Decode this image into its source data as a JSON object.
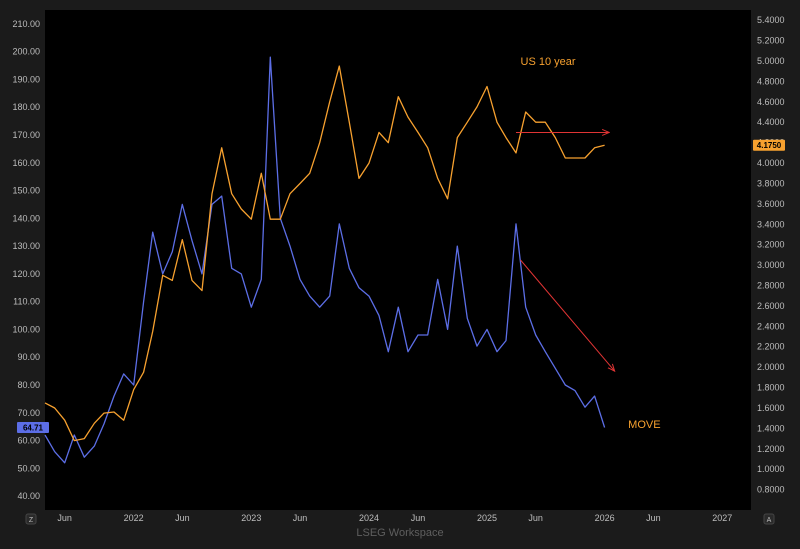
{
  "colors": {
    "background": "#1b1b1b",
    "plot_area": "#000000",
    "move_series": "#5c6ee6",
    "us10y_series": "#f7a12f",
    "arrow": "#e03434",
    "axis_text": "#bdbdbd"
  },
  "footer": {
    "watermark": "LSEG Workspace"
  },
  "corner_buttons": {
    "left": "Z",
    "right": "A"
  },
  "chart_data": {
    "type": "line",
    "x_axis": {
      "range": [
        "2021-04-01",
        "2027-03-31"
      ],
      "tick_labels": [
        {
          "date": "2021-06-01",
          "label": "Jun"
        },
        {
          "date": "2022-01-01",
          "label": "2022"
        },
        {
          "date": "2022-06-01",
          "label": "Jun"
        },
        {
          "date": "2023-01-01",
          "label": "2023"
        },
        {
          "date": "2023-06-01",
          "label": "Jun"
        },
        {
          "date": "2024-01-01",
          "label": "2024"
        },
        {
          "date": "2024-06-01",
          "label": "Jun"
        },
        {
          "date": "2025-01-01",
          "label": "2025"
        },
        {
          "date": "2025-06-01",
          "label": "Jun"
        },
        {
          "date": "2026-01-01",
          "label": "2026"
        },
        {
          "date": "2026-06-01",
          "label": "Jun"
        },
        {
          "date": "2027-01-01",
          "label": "2027"
        }
      ]
    },
    "left_axis": {
      "ylim": [
        35,
        215
      ],
      "ticks": [
        "40.00",
        "50.00",
        "60.00",
        "70.00",
        "80.00",
        "90.00",
        "100.00",
        "110.00",
        "120.00",
        "130.00",
        "140.00",
        "150.00",
        "160.00",
        "170.00",
        "180.00",
        "190.00",
        "200.00",
        "210.00"
      ]
    },
    "right_axis": {
      "ylim": [
        0.6,
        5.5
      ],
      "ticks": [
        "0.8000",
        "1.0000",
        "1.2000",
        "1.4000",
        "1.6000",
        "1.8000",
        "2.0000",
        "2.2000",
        "2.4000",
        "2.6000",
        "2.8000",
        "3.0000",
        "3.2000",
        "3.4000",
        "3.6000",
        "3.8000",
        "4.0000",
        "4.2000",
        "4.4000",
        "4.6000",
        "4.8000",
        "5.0000",
        "5.2000",
        "5.4000"
      ]
    },
    "series": [
      {
        "name": "MOVE",
        "axis": "left",
        "last_value_label": "64.71",
        "points": [
          [
            "2021-04-01",
            62
          ],
          [
            "2021-05-01",
            56
          ],
          [
            "2021-06-01",
            52
          ],
          [
            "2021-07-01",
            62
          ],
          [
            "2021-08-01",
            54
          ],
          [
            "2021-09-01",
            58
          ],
          [
            "2021-10-01",
            66
          ],
          [
            "2021-11-01",
            76
          ],
          [
            "2021-12-01",
            84
          ],
          [
            "2022-01-01",
            80
          ],
          [
            "2022-02-01",
            110
          ],
          [
            "2022-03-01",
            135
          ],
          [
            "2022-04-01",
            120
          ],
          [
            "2022-05-01",
            128
          ],
          [
            "2022-06-01",
            145
          ],
          [
            "2022-07-01",
            132
          ],
          [
            "2022-08-01",
            120
          ],
          [
            "2022-09-01",
            145
          ],
          [
            "2022-10-01",
            148
          ],
          [
            "2022-11-01",
            122
          ],
          [
            "2022-12-01",
            120
          ],
          [
            "2023-01-01",
            108
          ],
          [
            "2023-02-01",
            118
          ],
          [
            "2023-03-01",
            198
          ],
          [
            "2023-04-01",
            140
          ],
          [
            "2023-05-01",
            130
          ],
          [
            "2023-06-01",
            118
          ],
          [
            "2023-07-01",
            112
          ],
          [
            "2023-08-01",
            108
          ],
          [
            "2023-09-01",
            112
          ],
          [
            "2023-10-01",
            138
          ],
          [
            "2023-11-01",
            122
          ],
          [
            "2023-12-01",
            115
          ],
          [
            "2024-01-01",
            112
          ],
          [
            "2024-02-01",
            105
          ],
          [
            "2024-03-01",
            92
          ],
          [
            "2024-04-01",
            108
          ],
          [
            "2024-05-01",
            92
          ],
          [
            "2024-06-01",
            98
          ],
          [
            "2024-07-01",
            98
          ],
          [
            "2024-08-01",
            118
          ],
          [
            "2024-09-01",
            100
          ],
          [
            "2024-10-01",
            130
          ],
          [
            "2024-11-01",
            104
          ],
          [
            "2024-12-01",
            94
          ],
          [
            "2025-01-01",
            100
          ],
          [
            "2025-02-01",
            92
          ],
          [
            "2025-03-01",
            96
          ],
          [
            "2025-04-01",
            138
          ],
          [
            "2025-05-01",
            108
          ],
          [
            "2025-06-01",
            98
          ],
          [
            "2025-07-01",
            92
          ],
          [
            "2025-08-01",
            86
          ],
          [
            "2025-09-01",
            80
          ],
          [
            "2025-10-01",
            78
          ],
          [
            "2025-11-01",
            72
          ],
          [
            "2025-12-01",
            76
          ],
          [
            "2026-01-01",
            64.71
          ]
        ]
      },
      {
        "name": "US 10 year",
        "axis": "right",
        "last_value_label": "4.1750",
        "points": [
          [
            "2021-04-01",
            1.65
          ],
          [
            "2021-05-01",
            1.6
          ],
          [
            "2021-06-01",
            1.48
          ],
          [
            "2021-07-01",
            1.28
          ],
          [
            "2021-08-01",
            1.3
          ],
          [
            "2021-09-01",
            1.45
          ],
          [
            "2021-10-01",
            1.55
          ],
          [
            "2021-11-01",
            1.56
          ],
          [
            "2021-12-01",
            1.48
          ],
          [
            "2022-01-01",
            1.78
          ],
          [
            "2022-02-01",
            1.95
          ],
          [
            "2022-03-01",
            2.35
          ],
          [
            "2022-04-01",
            2.9
          ],
          [
            "2022-05-01",
            2.85
          ],
          [
            "2022-06-01",
            3.25
          ],
          [
            "2022-07-01",
            2.85
          ],
          [
            "2022-08-01",
            2.75
          ],
          [
            "2022-09-01",
            3.7
          ],
          [
            "2022-10-01",
            4.15
          ],
          [
            "2022-11-01",
            3.7
          ],
          [
            "2022-12-01",
            3.55
          ],
          [
            "2023-01-01",
            3.45
          ],
          [
            "2023-02-01",
            3.9
          ],
          [
            "2023-03-01",
            3.45
          ],
          [
            "2023-04-01",
            3.45
          ],
          [
            "2023-05-01",
            3.7
          ],
          [
            "2023-06-01",
            3.8
          ],
          [
            "2023-07-01",
            3.9
          ],
          [
            "2023-08-01",
            4.2
          ],
          [
            "2023-09-01",
            4.6
          ],
          [
            "2023-10-01",
            4.95
          ],
          [
            "2023-11-01",
            4.4
          ],
          [
            "2023-12-01",
            3.85
          ],
          [
            "2024-01-01",
            4.0
          ],
          [
            "2024-02-01",
            4.3
          ],
          [
            "2024-03-01",
            4.2
          ],
          [
            "2024-04-01",
            4.65
          ],
          [
            "2024-05-01",
            4.45
          ],
          [
            "2024-06-01",
            4.3
          ],
          [
            "2024-07-01",
            4.15
          ],
          [
            "2024-08-01",
            3.85
          ],
          [
            "2024-09-01",
            3.65
          ],
          [
            "2024-10-01",
            4.25
          ],
          [
            "2024-11-01",
            4.4
          ],
          [
            "2024-12-01",
            4.55
          ],
          [
            "2025-01-01",
            4.75
          ],
          [
            "2025-02-01",
            4.4
          ],
          [
            "2025-03-01",
            4.25
          ],
          [
            "2025-04-01",
            4.1
          ],
          [
            "2025-05-01",
            4.5
          ],
          [
            "2025-06-01",
            4.4
          ],
          [
            "2025-07-01",
            4.4
          ],
          [
            "2025-08-01",
            4.25
          ],
          [
            "2025-09-01",
            4.05
          ],
          [
            "2025-10-01",
            4.05
          ],
          [
            "2025-11-01",
            4.05
          ],
          [
            "2025-12-01",
            4.15
          ],
          [
            "2026-01-01",
            4.175
          ]
        ]
      }
    ],
    "annotations": [
      {
        "text": "US 10 year",
        "color": "#f7a12f",
        "date": "2025-04-15",
        "value_right": 5.0
      },
      {
        "text": "MOVE",
        "color": "#f7a12f",
        "date": "2026-03-15",
        "value_left": 66
      }
    ],
    "arrows": [
      {
        "color": "#e03434",
        "from": {
          "date": "2025-04-01",
          "value_right": 4.3
        },
        "to": {
          "date": "2026-01-15",
          "value_right": 4.3
        }
      },
      {
        "color": "#e03434",
        "from": {
          "date": "2025-04-15",
          "value_left": 125
        },
        "to": {
          "date": "2026-02-01",
          "value_left": 85
        }
      }
    ],
    "grid": false,
    "legend": "none"
  }
}
